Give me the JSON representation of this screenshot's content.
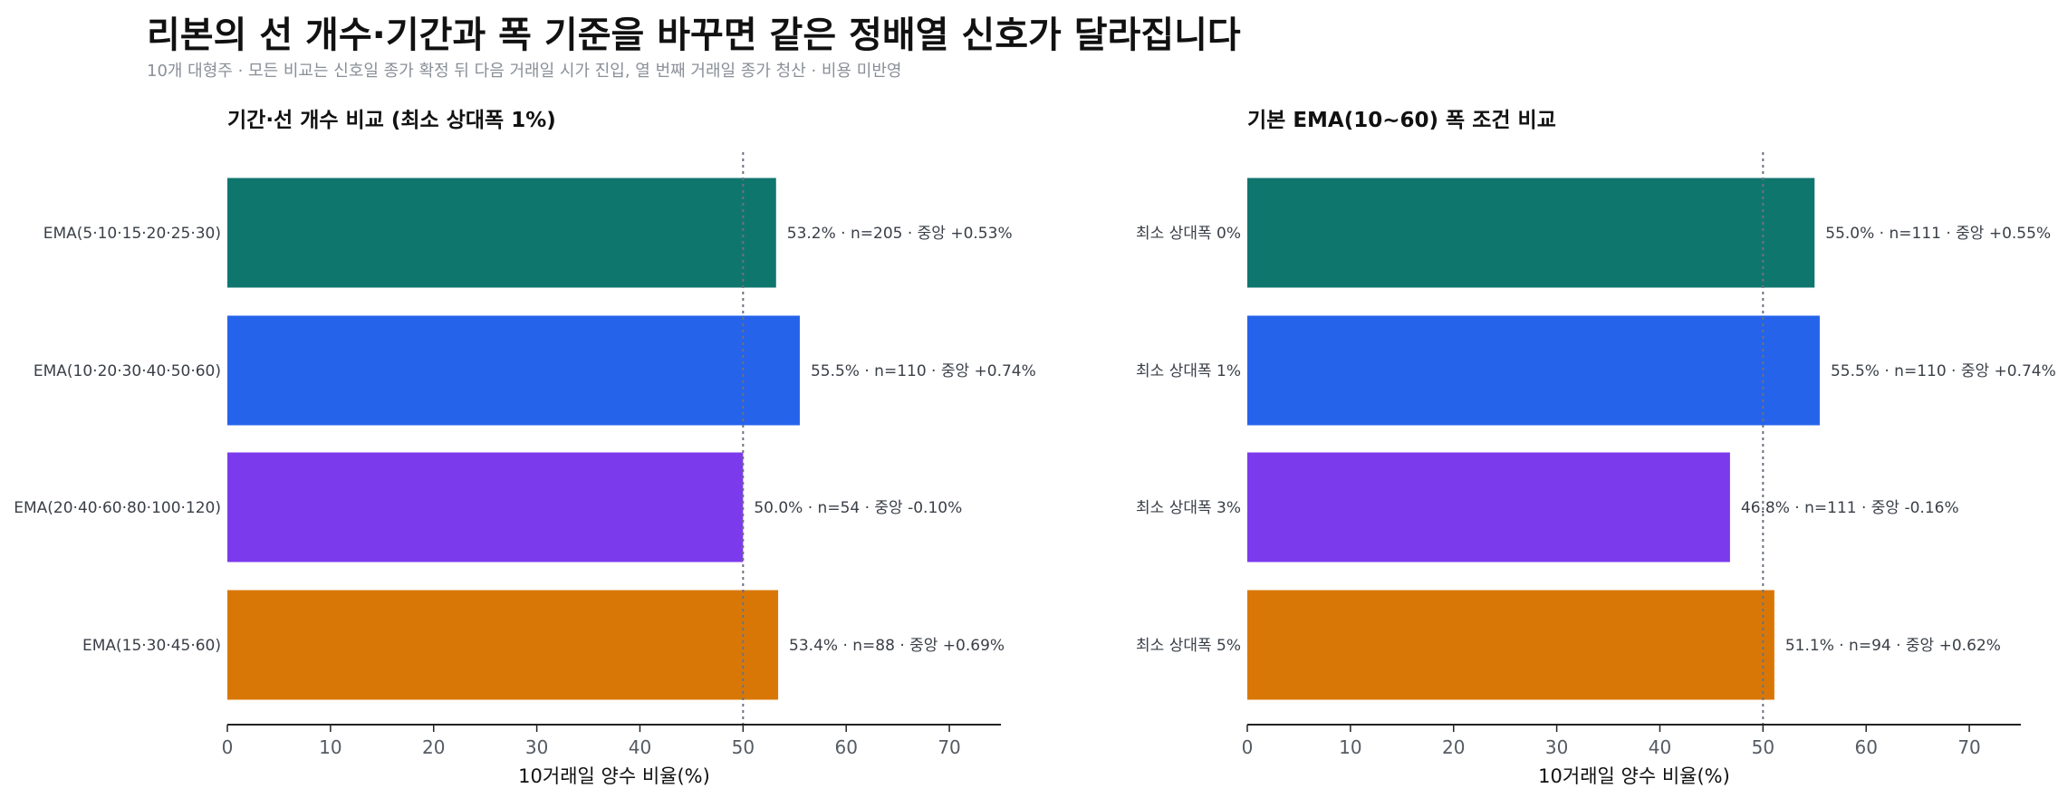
{
  "header": {
    "title": "리본의 선 개수·기간과 폭 기준을 바꾸면 같은 정배열 신호가 달라집니다",
    "subtitle": "10개 대형주 · 모든 비교는 신호일 종가 확정 뒤 다음 거래일 시가 진입, 열 번째 거래일 종가 청산 · 비용 미반영"
  },
  "chart_data": [
    {
      "type": "bar",
      "orientation": "horizontal",
      "title": "기간·선 개수 비교 (최소 상대폭 1%)",
      "xlabel": "10거래일 양수 비율(%)",
      "xlim": [
        0,
        75
      ],
      "xticks": [
        0,
        10,
        20,
        30,
        40,
        50,
        60,
        70
      ],
      "reference_line": 50,
      "categories": [
        "EMA(5·10·15·20·25·30)",
        "EMA(10·20·30·40·50·60)",
        "EMA(20·40·60·80·100·120)",
        "EMA(15·30·45·60)"
      ],
      "values": [
        53.2,
        55.5,
        50.0,
        53.4
      ],
      "colors": [
        "#0f766e",
        "#2563eb",
        "#7c3aed",
        "#d97706"
      ],
      "labels": [
        "53.2% · n=205 · 중앙 +0.53%",
        "55.5% · n=110 · 중앙 +0.74%",
        "50.0% · n=54 · 중앙 -0.10%",
        "53.4% · n=88 · 중앙 +0.69%"
      ]
    },
    {
      "type": "bar",
      "orientation": "horizontal",
      "title": "기본 EMA(10~60) 폭 조건 비교",
      "xlabel": "10거래일 양수 비율(%)",
      "xlim": [
        0,
        75
      ],
      "xticks": [
        0,
        10,
        20,
        30,
        40,
        50,
        60,
        70
      ],
      "reference_line": 50,
      "categories": [
        "최소 상대폭 0%",
        "최소 상대폭 1%",
        "최소 상대폭 3%",
        "최소 상대폭 5%"
      ],
      "values": [
        55.0,
        55.5,
        46.8,
        51.1
      ],
      "colors": [
        "#0f766e",
        "#2563eb",
        "#7c3aed",
        "#d97706"
      ],
      "labels": [
        "55.0% · n=111 · 중앙 +0.55%",
        "55.5% · n=110 · 중앙 +0.74%",
        "46.8% · n=111 · 중앙 -0.16%",
        "51.1% · n=94 · 중앙 +0.62%"
      ]
    }
  ]
}
